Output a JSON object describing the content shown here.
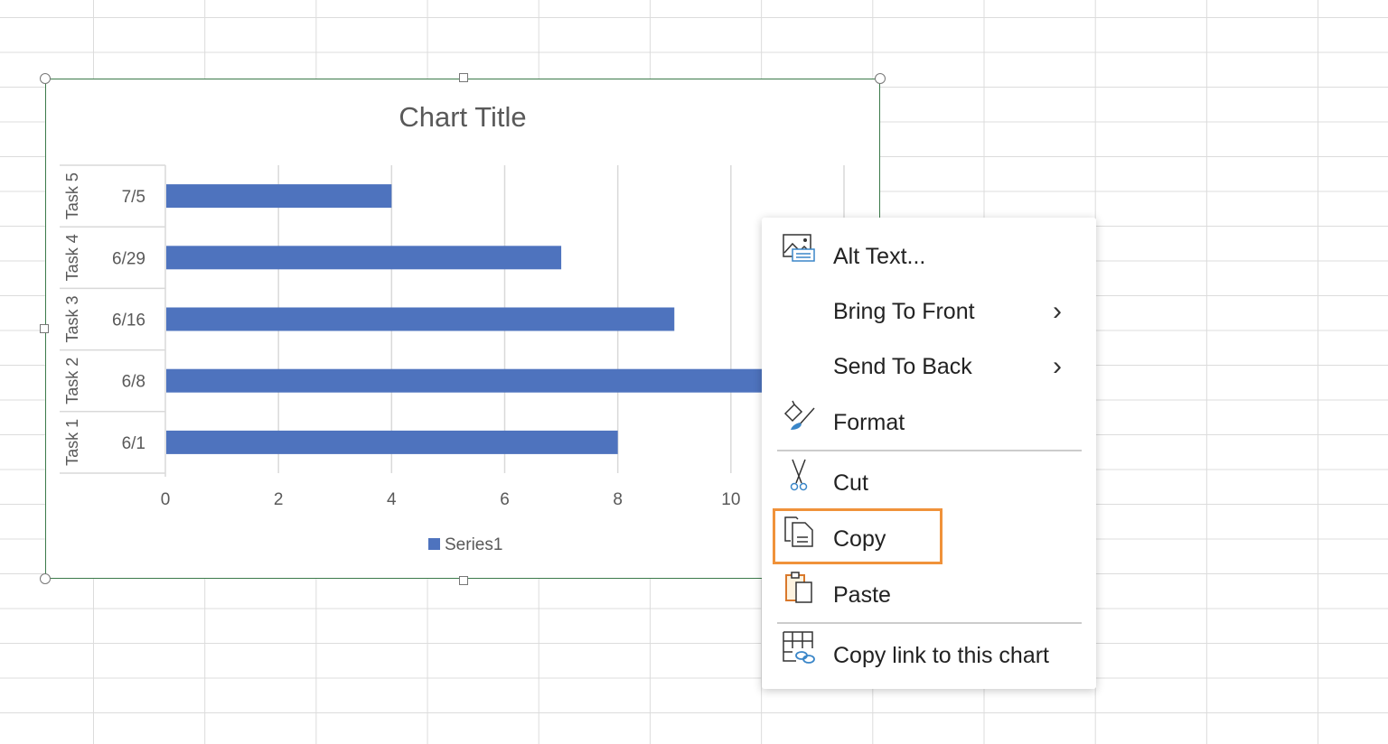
{
  "chart_data": {
    "type": "bar",
    "orientation": "horizontal",
    "title": "Chart Title",
    "categories": [
      {
        "group": "Task 1",
        "label": "6/1"
      },
      {
        "group": "Task 2",
        "label": "6/8"
      },
      {
        "group": "Task 3",
        "label": "6/16"
      },
      {
        "group": "Task 4",
        "label": "6/29"
      },
      {
        "group": "Task 5",
        "label": "7/5"
      }
    ],
    "series": [
      {
        "name": "Series1",
        "values": [
          8,
          11,
          9,
          7,
          4
        ],
        "color": "#4e73be"
      }
    ],
    "xlim": [
      0,
      12
    ],
    "xticks": [
      "0",
      "2",
      "4",
      "6",
      "8",
      "10"
    ],
    "grid": true,
    "legend": "bottom"
  },
  "context_menu": {
    "items": [
      {
        "label": "Alt Text...",
        "icon": "alt-text-icon"
      },
      {
        "label": "Bring To Front",
        "icon": "",
        "submenu": true
      },
      {
        "label": "Send To Back",
        "icon": "",
        "submenu": true
      },
      {
        "label": "Format",
        "icon": "format-paint-icon"
      },
      {
        "label": "Cut",
        "icon": "scissors-icon"
      },
      {
        "label": "Copy",
        "icon": "copy-icon",
        "highlighted": true
      },
      {
        "label": "Paste",
        "icon": "paste-icon"
      },
      {
        "label": "Copy link to this chart",
        "icon": "link-chart-icon"
      }
    ],
    "highlight_color": "#f0923a"
  }
}
